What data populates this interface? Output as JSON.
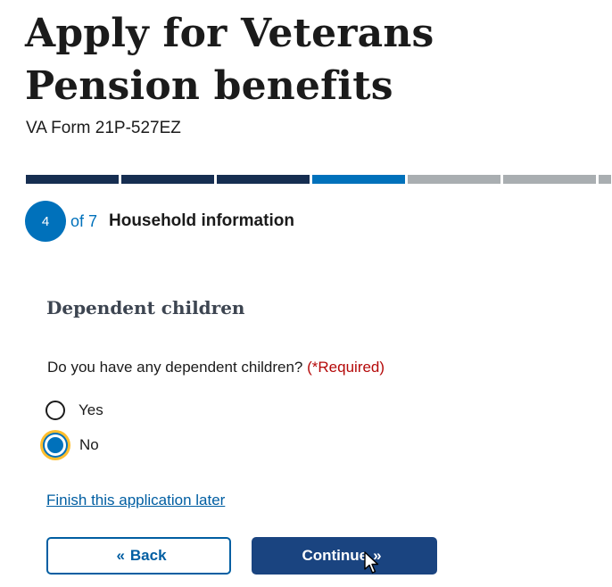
{
  "header": {
    "title": "Apply for Veterans Pension benefits",
    "form_number": "VA Form 21P-527EZ"
  },
  "progress": {
    "current_step": 4,
    "total_steps": 7,
    "current_label": "4",
    "of_label": "of 7",
    "step_title": "Household information"
  },
  "section": {
    "heading": "Dependent children",
    "question": "Do you have any dependent children?",
    "required_marker": "(*Required)",
    "options": [
      {
        "label": "Yes",
        "selected": false
      },
      {
        "label": "No",
        "selected": true
      }
    ]
  },
  "actions": {
    "save_later_link": "Finish this application later",
    "back_label": "Back",
    "continue_label": "Continue",
    "back_chevron": "«",
    "continue_chevron": "»"
  },
  "colors": {
    "progress_done": "#162e51",
    "progress_current": "#0071bb",
    "progress_todo": "#a9aeb1",
    "primary_button": "#1a4480",
    "link": "#005ea2",
    "required": "#b50909",
    "focus_ring": "#ffbe2e"
  },
  "icons": {
    "cursor": "pointer-cursor-icon"
  }
}
